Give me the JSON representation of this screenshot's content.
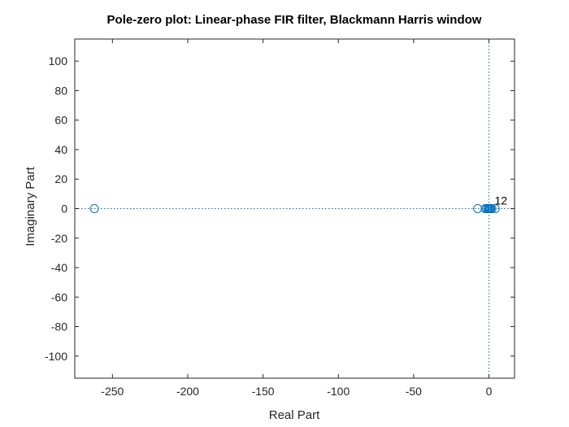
{
  "chart_data": {
    "type": "scatter",
    "title": "Pole-zero plot: Linear-phase FIR filter, Blackmann Harris window",
    "xlabel": "Real Part",
    "ylabel": "Imaginary Part",
    "xlim": [
      -275,
      17
    ],
    "ylim": [
      -115,
      115
    ],
    "xticks": [
      -250,
      -200,
      -150,
      -100,
      -50,
      0
    ],
    "yticks": [
      -100,
      -80,
      -60,
      -40,
      -20,
      0,
      20,
      40,
      60,
      80,
      100
    ],
    "grid": false,
    "marker": "circle",
    "marker_color": "#0072BD",
    "reference_line_color": "#0072BD",
    "zeros": [
      {
        "x": -262,
        "y": 0
      },
      {
        "x": -7.5,
        "y": 0
      },
      {
        "x": -2.5,
        "y": 0
      },
      {
        "x": -1.5,
        "y": 0
      },
      {
        "x": -0.6,
        "y": 0
      },
      {
        "x": -0.35,
        "y": 0
      },
      {
        "x": 0.35,
        "y": 0
      },
      {
        "x": 0.6,
        "y": 0
      },
      {
        "x": 1.2,
        "y": 0
      },
      {
        "x": 2.0,
        "y": 0
      },
      {
        "x": 4.2,
        "y": 0
      }
    ],
    "pole_annotation": {
      "label": "12",
      "x": 0,
      "y": 0
    }
  }
}
